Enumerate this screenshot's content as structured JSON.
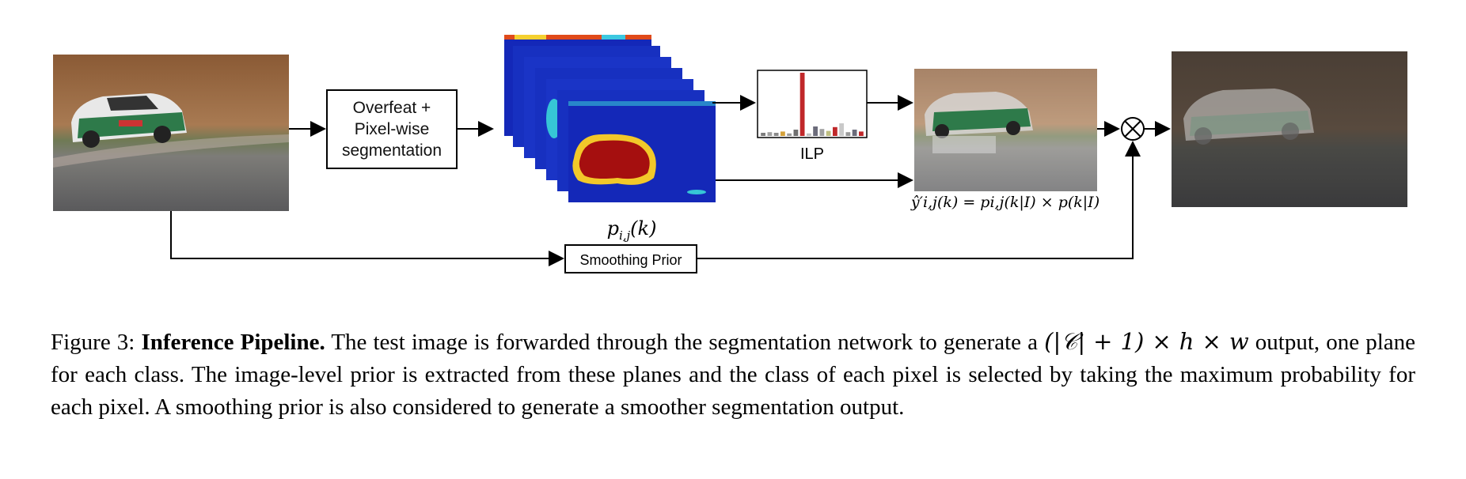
{
  "diagram": {
    "overfeat_box": {
      "line1": "Overfeat +",
      "line2": "Pixel-wise",
      "line3": "segmentation"
    },
    "heatmap_label": "p_{i,j}(k)",
    "heatmap_label_display": "pi,j(k)",
    "ilp_label": "ILP",
    "smoothing_label": "Smoothing Prior",
    "equation": "ŷ′i,j(k) = pi,j(k|I) × p(k|I)",
    "multiply_symbol": "⊗",
    "ilp_bars": [
      {
        "value": 0.05,
        "color": "#7d7d7d"
      },
      {
        "value": 0.06,
        "color": "#a0a0a0"
      },
      {
        "value": 0.05,
        "color": "#8a8a8a"
      },
      {
        "value": 0.07,
        "color": "#d4a13a"
      },
      {
        "value": 0.04,
        "color": "#9a9a9a"
      },
      {
        "value": 0.1,
        "color": "#6f6f6f"
      },
      {
        "value": 1.0,
        "color": "#c0282a"
      },
      {
        "value": 0.04,
        "color": "#c0c0c0"
      },
      {
        "value": 0.15,
        "color": "#6b6b7a"
      },
      {
        "value": 0.11,
        "color": "#a0a0a0"
      },
      {
        "value": 0.08,
        "color": "#bdbd80"
      },
      {
        "value": 0.14,
        "color": "#c0282a"
      },
      {
        "value": 0.2,
        "color": "#c9c9c9"
      },
      {
        "value": 0.06,
        "color": "#9a9a9a"
      },
      {
        "value": 0.1,
        "color": "#6b6b7a"
      },
      {
        "value": 0.07,
        "color": "#c0282a"
      }
    ]
  },
  "caption": {
    "prefix": "Figure 3: ",
    "bold": "Inference Pipeline.",
    "text1": " The test image is forwarded through the segmentation network to generate a ",
    "math": "(|𝒞| + 1) × h × w",
    "text2": " output, one plane for each class. The image-level prior is extracted from these planes and the class of each pixel is selected by taking the maximum probability for each pixel. A smoothing prior is also considered to generate a smoother segmentation output."
  }
}
